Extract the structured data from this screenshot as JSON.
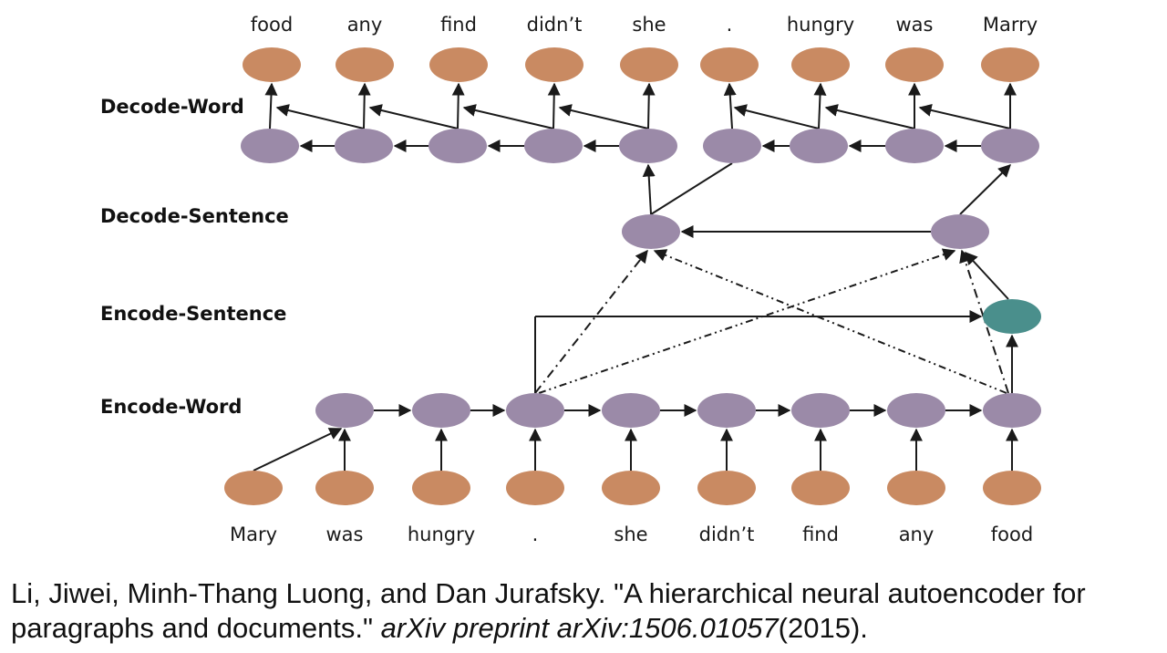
{
  "row_labels": {
    "decode_word": "Decode-Word",
    "decode_sentence": "Decode-Sentence",
    "encode_sentence": "Encode-Sentence",
    "encode_word": "Encode-Word"
  },
  "top_words": [
    "food",
    "any",
    "find",
    "didn’t",
    "she",
    ".",
    "hungry",
    "was",
    "Marry"
  ],
  "bottom_words": [
    "Mary",
    "was",
    "hungry",
    ".",
    "she",
    "didn’t",
    "find",
    "any",
    "food"
  ],
  "citation": {
    "authors_title": "Li, Jiwei, Minh-Thang Luong, and Dan Jurafsky. \"A hierarchical neural autoencoder for paragraphs and documents.\"",
    "venue": "arXiv preprint arXiv:1506.01057",
    "year": "(2015)."
  },
  "colors": {
    "word_node": "#c98a62",
    "hidden_node": "#9b8aa8",
    "sentence_node": "#4a8f8c",
    "edge": "#1a1a1a"
  }
}
